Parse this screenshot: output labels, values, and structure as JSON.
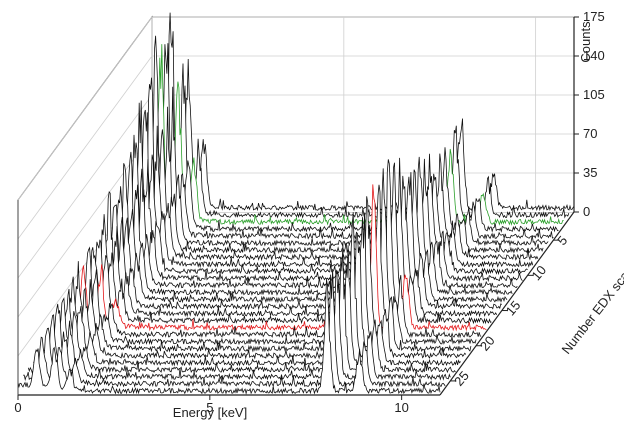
{
  "chart_data": {
    "type": "line",
    "style": "3d-waterfall",
    "xlabel": "Energy [keV]",
    "ylabel": "Number EDX scan",
    "zlabel": "Counts",
    "x_ticks": [
      "0",
      "5",
      "10"
    ],
    "y_ticks": [
      "5",
      "10",
      "15",
      "20",
      "25"
    ],
    "z_ticks": [
      "0",
      "35",
      "70",
      "105",
      "140",
      "175"
    ],
    "xlim": [
      0,
      11
    ],
    "ylim": [
      1,
      27
    ],
    "zlim": [
      0,
      175
    ],
    "grid": true,
    "legend": "none",
    "scan_count": 27,
    "highlight_scans": [
      {
        "scan": 3,
        "color": "#2ca02c"
      },
      {
        "scan": 18,
        "color": "#e31a1c"
      }
    ],
    "default_color": "#111111",
    "peaks_keV": [
      {
        "energy": 0.5,
        "counts": [
          170,
          160,
          150,
          140,
          130,
          120,
          110,
          100,
          92,
          86,
          80,
          75,
          70,
          66,
          62,
          58,
          55,
          52,
          50,
          48,
          46,
          44,
          42,
          40,
          38,
          36,
          34
        ]
      },
      {
        "energy": 0.95,
        "counts": [
          120,
          115,
          110,
          104,
          98,
          92,
          88,
          82,
          78,
          74,
          70,
          66,
          62,
          58,
          55,
          52,
          50,
          48,
          46,
          44,
          42,
          40,
          38,
          36,
          35,
          34,
          33
        ]
      },
      {
        "energy": 1.35,
        "counts": [
          60,
          58,
          56,
          54,
          52,
          50,
          48,
          46,
          44,
          42,
          40,
          38,
          36,
          34,
          32,
          30,
          28,
          26,
          25,
          24,
          23,
          22,
          21,
          20,
          19,
          18,
          17
        ]
      },
      {
        "energy": 8.05,
        "counts": [
          78,
          72,
          66,
          62,
          60,
          64,
          70,
          76,
          84,
          90,
          94,
          98,
          100,
          104,
          108,
          112,
          114,
          115,
          115,
          112,
          108,
          105,
          102,
          100,
          96,
          92,
          88
        ]
      },
      {
        "energy": 8.9,
        "counts": [
          30,
          29,
          28,
          27,
          26,
          28,
          30,
          32,
          34,
          36,
          38,
          40,
          41,
          42,
          43,
          44,
          45,
          45,
          44,
          43,
          42,
          41,
          40,
          39,
          38,
          37,
          36
        ]
      }
    ]
  }
}
